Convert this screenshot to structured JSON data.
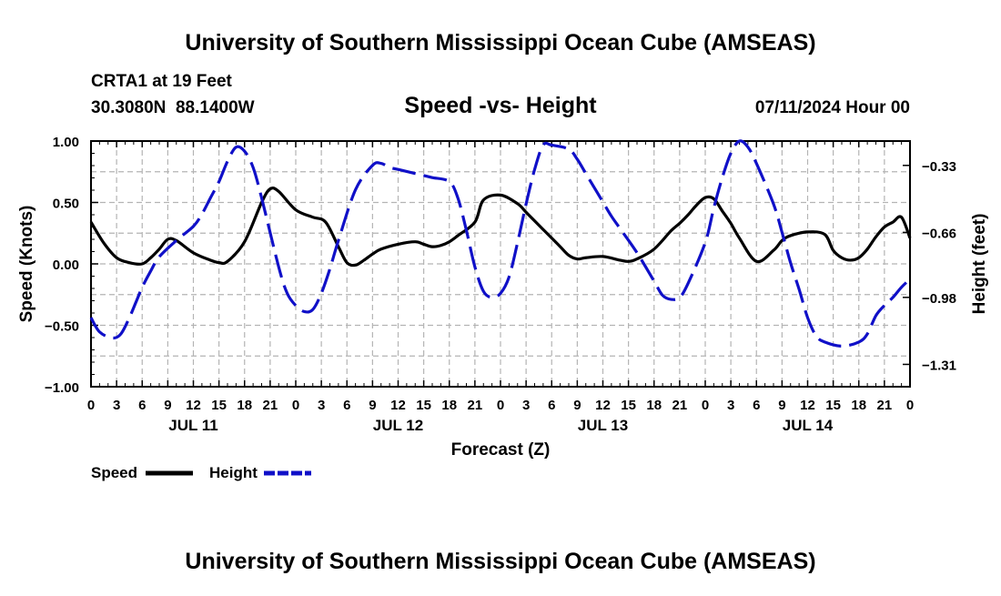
{
  "header": {
    "title": "University of Southern Mississippi Ocean Cube (AMSEAS)",
    "station": "CRTA1 at 19 Feet",
    "coords": "30.3080N  88.1400W",
    "subtitle": "Speed -vs- Height",
    "datetime": "07/11/2024 Hour 00"
  },
  "footer": {
    "title": "University of Southern Mississippi Ocean Cube (AMSEAS)"
  },
  "chart_data": {
    "type": "line",
    "title": "Speed -vs- Height",
    "xlabel": "Forecast (Z)",
    "ylabel": "Speed (Knots)",
    "y2label": "Height (feet)",
    "grid": true,
    "x_range_hours": [
      0,
      96
    ],
    "ylim": [
      -1.0,
      1.0
    ],
    "y2lim": [
      -1.42,
      -0.21
    ],
    "x_tick_labels": [
      "0",
      "3",
      "6",
      "9",
      "12",
      "15",
      "18",
      "21",
      "0",
      "3",
      "6",
      "9",
      "12",
      "15",
      "18",
      "21",
      "0",
      "3",
      "6",
      "9",
      "12",
      "15",
      "18",
      "21",
      "0",
      "3",
      "6",
      "9",
      "12",
      "15",
      "18",
      "21",
      "0"
    ],
    "date_labels": [
      {
        "label": "JUL 11",
        "hour": 12
      },
      {
        "label": "JUL 12",
        "hour": 36
      },
      {
        "label": "JUL 13",
        "hour": 60
      },
      {
        "label": "JUL 14",
        "hour": 84
      }
    ],
    "y_ticks": [
      {
        "value": 1.0,
        "label": "1.00"
      },
      {
        "value": 0.5,
        "label": "0.50"
      },
      {
        "value": 0.0,
        "label": "0.00"
      },
      {
        "value": -0.5,
        "label": "−0.50"
      },
      {
        "value": -1.0,
        "label": "−1.00"
      }
    ],
    "y2_ticks": [
      {
        "value": -0.33,
        "label": "−0.33"
      },
      {
        "value": -0.66,
        "label": "−0.66"
      },
      {
        "value": -0.98,
        "label": "−0.98"
      },
      {
        "value": -1.31,
        "label": "−1.31"
      }
    ],
    "series": [
      {
        "name": "Speed",
        "color": "#000000",
        "axis": "left",
        "dash": "solid",
        "x": [
          0,
          1.5,
          3,
          4.5,
          6,
          7,
          8,
          9,
          10,
          12,
          14,
          15,
          16,
          18,
          20,
          21,
          22,
          24,
          26,
          27.5,
          29,
          30,
          31,
          32,
          33,
          34,
          36,
          38,
          39,
          40,
          41,
          42,
          43,
          45,
          46,
          48,
          50,
          51,
          52,
          54,
          55,
          56,
          57,
          58,
          60,
          62,
          63,
          64,
          66,
          68,
          69,
          70,
          71,
          72,
          73,
          74,
          75,
          76,
          78,
          80,
          81,
          82,
          84,
          86,
          87,
          88,
          89,
          90,
          91,
          92,
          93,
          94,
          95,
          96
        ],
        "values": [
          0.34,
          0.17,
          0.05,
          0.01,
          0.0,
          0.05,
          0.12,
          0.2,
          0.19,
          0.09,
          0.03,
          0.01,
          0.02,
          0.18,
          0.5,
          0.61,
          0.59,
          0.44,
          0.38,
          0.34,
          0.14,
          0.01,
          -0.01,
          0.03,
          0.08,
          0.12,
          0.16,
          0.18,
          0.16,
          0.14,
          0.15,
          0.18,
          0.23,
          0.34,
          0.52,
          0.56,
          0.49,
          0.42,
          0.35,
          0.21,
          0.14,
          0.07,
          0.04,
          0.05,
          0.06,
          0.03,
          0.02,
          0.04,
          0.12,
          0.27,
          0.33,
          0.4,
          0.48,
          0.54,
          0.53,
          0.43,
          0.33,
          0.21,
          0.02,
          0.11,
          0.19,
          0.23,
          0.26,
          0.24,
          0.11,
          0.05,
          0.03,
          0.05,
          0.12,
          0.22,
          0.3,
          0.34,
          0.38,
          0.21
        ]
      },
      {
        "name": "Height",
        "color": "#1010c8",
        "axis": "right",
        "dash": "dashed",
        "x": [
          0,
          1,
          2.5,
          3.5,
          4.5,
          5.5,
          6,
          7,
          8,
          10,
          12,
          13,
          14,
          15,
          16,
          17,
          18,
          19,
          20,
          22,
          23,
          24,
          25,
          26,
          27,
          28,
          29,
          31,
          33,
          34,
          35,
          36,
          37,
          38,
          39,
          40,
          42,
          43,
          44,
          45,
          46,
          47,
          48,
          49,
          50,
          51,
          52,
          53,
          54,
          56,
          57,
          58,
          59,
          60,
          61,
          62,
          64,
          66,
          67,
          68,
          69,
          70,
          72,
          73,
          74,
          75,
          76,
          77,
          78,
          80,
          81,
          82,
          83,
          84,
          85,
          86,
          88,
          90,
          91,
          92,
          93,
          94,
          95,
          96
        ],
        "values": [
          -1.08,
          -1.15,
          -1.18,
          -1.16,
          -1.08,
          -0.98,
          -0.93,
          -0.85,
          -0.78,
          -0.7,
          -0.63,
          -0.57,
          -0.49,
          -0.41,
          -0.31,
          -0.24,
          -0.26,
          -0.34,
          -0.49,
          -0.83,
          -0.96,
          -1.02,
          -1.05,
          -1.04,
          -0.96,
          -0.84,
          -0.7,
          -0.45,
          -0.33,
          -0.32,
          -0.34,
          -0.35,
          -0.36,
          -0.37,
          -0.38,
          -0.39,
          -0.41,
          -0.49,
          -0.65,
          -0.83,
          -0.95,
          -0.98,
          -0.96,
          -0.88,
          -0.71,
          -0.52,
          -0.35,
          -0.23,
          -0.23,
          -0.25,
          -0.3,
          -0.37,
          -0.44,
          -0.51,
          -0.58,
          -0.64,
          -0.76,
          -0.9,
          -0.97,
          -0.99,
          -0.98,
          -0.91,
          -0.71,
          -0.54,
          -0.39,
          -0.27,
          -0.21,
          -0.24,
          -0.32,
          -0.52,
          -0.66,
          -0.81,
          -0.94,
          -1.08,
          -1.17,
          -1.2,
          -1.22,
          -1.2,
          -1.16,
          -1.07,
          -1.02,
          -0.98,
          -0.93,
          -0.89
        ]
      }
    ],
    "legend": {
      "position": "bottom-left",
      "items": [
        {
          "label": "Speed",
          "color": "#000000",
          "dash": "solid"
        },
        {
          "label": "Height",
          "color": "#1010c8",
          "dash": "dashed"
        }
      ]
    }
  }
}
